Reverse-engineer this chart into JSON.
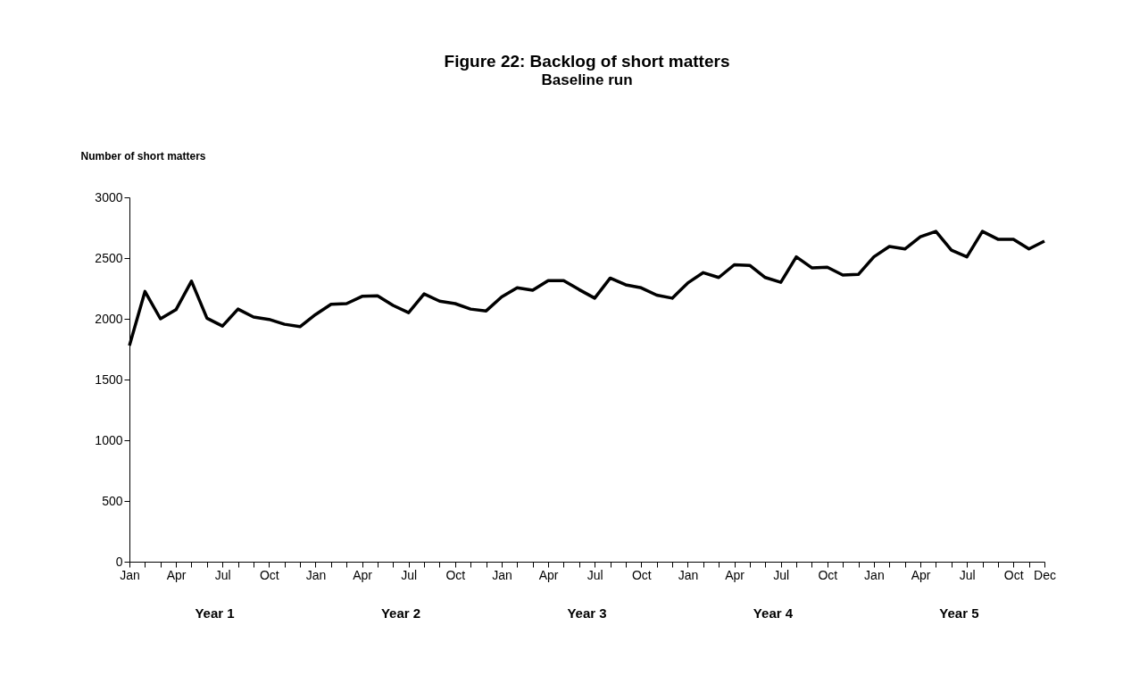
{
  "chart_data": {
    "type": "line",
    "title": "Figure 22: Backlog of short matters",
    "subtitle": "Baseline run",
    "ylabel": "Number of short matters",
    "categories": [
      "Jan",
      null,
      null,
      "Apr",
      null,
      null,
      "Jul",
      null,
      null,
      "Oct",
      null,
      null,
      "Jan",
      null,
      null,
      "Apr",
      null,
      null,
      "Jul",
      null,
      null,
      "Oct",
      null,
      null,
      "Jan",
      null,
      null,
      "Apr",
      null,
      null,
      "Jul",
      null,
      null,
      "Oct",
      null,
      null,
      "Jan",
      null,
      null,
      "Apr",
      null,
      null,
      "Jul",
      null,
      null,
      "Oct",
      null,
      null,
      "Jan",
      null,
      null,
      "Apr",
      null,
      null,
      "Jul",
      null,
      null,
      "Oct",
      null,
      "Dec"
    ],
    "series": [
      {
        "color": "#000000",
        "values": [
          1780,
          2225,
          2000,
          2075,
          2310,
          2005,
          1940,
          2080,
          2015,
          1995,
          1955,
          1935,
          2035,
          2120,
          2125,
          2185,
          2190,
          2110,
          2050,
          2205,
          2145,
          2125,
          2080,
          2065,
          2180,
          2255,
          2235,
          2315,
          2315,
          2240,
          2170,
          2335,
          2280,
          2255,
          2195,
          2170,
          2295,
          2380,
          2340,
          2445,
          2440,
          2340,
          2300,
          2510,
          2420,
          2425,
          2360,
          2365,
          2510,
          2595,
          2575,
          2675,
          2720,
          2565,
          2510,
          2720,
          2655,
          2655,
          2575,
          2640
        ]
      }
    ],
    "ylim": [
      0,
      3000
    ],
    "yticks": [
      0,
      500,
      1000,
      1500,
      2000,
      2500,
      3000
    ],
    "grid": false,
    "annotations": [
      "Year 1",
      "Year 2",
      "Year 3",
      "Year 4",
      "Year 5"
    ]
  }
}
